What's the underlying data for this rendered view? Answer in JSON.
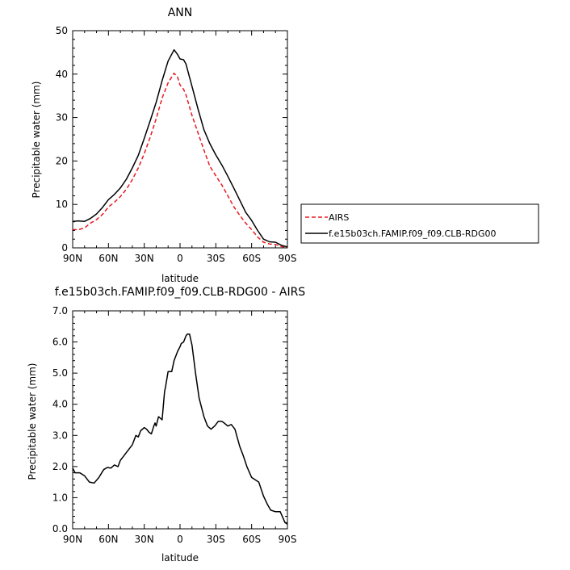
{
  "chart_data": [
    {
      "type": "line",
      "title": "ANN",
      "xlabel": "latitude",
      "ylabel": "Precipitable water (mm)",
      "xlim": [
        90,
        -90
      ],
      "ylim": [
        0,
        50
      ],
      "xticks": [
        90,
        60,
        30,
        0,
        -30,
        -60,
        -90
      ],
      "xtick_labels": [
        "90N",
        "60N",
        "30N",
        "0",
        "30S",
        "60S",
        "90S"
      ],
      "yticks": [
        0,
        10,
        20,
        30,
        40,
        50
      ],
      "ytick_labels": [
        "0",
        "10",
        "20",
        "30",
        "40",
        "50"
      ],
      "legend": [
        "AIRS",
        "f.e15b03ch.FAMIP.f09_f09.CLB-RDG00"
      ],
      "series": [
        {
          "name": "AIRS",
          "color": "#e8191f",
          "dash": true,
          "x": [
            90,
            85,
            80,
            75,
            70,
            65,
            60,
            55,
            50,
            45,
            40,
            35,
            30,
            25,
            20,
            15,
            10,
            5,
            2,
            0,
            -3,
            -5,
            -10,
            -15,
            -20,
            -25,
            -30,
            -35,
            -40,
            -45,
            -50,
            -55,
            -60,
            -65,
            -70,
            -75,
            -80,
            -85,
            -90
          ],
          "values": [
            4.2,
            4.2,
            4.6,
            5.7,
            6.5,
            7.7,
            9.4,
            10.5,
            11.8,
            13.5,
            15.7,
            18.4,
            21.7,
            25.5,
            29.7,
            34.5,
            38.0,
            40.2,
            39.3,
            37.5,
            36.5,
            35.2,
            30.5,
            26.5,
            22.5,
            18.8,
            16.6,
            14.5,
            12.0,
            9.5,
            7.5,
            5.7,
            4.2,
            2.5,
            1.3,
            0.9,
            0.8,
            0.3,
            0.1
          ]
        },
        {
          "name": "f.e15b03ch.FAMIP.f09_f09.CLB-RDG00",
          "color": "#000000",
          "dash": false,
          "x": [
            90,
            85,
            80,
            75,
            70,
            65,
            60,
            55,
            50,
            45,
            40,
            35,
            30,
            25,
            20,
            15,
            10,
            5,
            2,
            0,
            -3,
            -5,
            -10,
            -15,
            -20,
            -25,
            -30,
            -35,
            -40,
            -45,
            -50,
            -55,
            -60,
            -65,
            -70,
            -75,
            -80,
            -85,
            -90
          ],
          "values": [
            6.1,
            6.2,
            6.1,
            6.8,
            7.8,
            9.3,
            11.1,
            12.3,
            13.8,
            15.8,
            18.4,
            21.3,
            25.2,
            29.3,
            33.5,
            38.5,
            43.0,
            45.6,
            44.5,
            43.5,
            43.3,
            42.3,
            37.2,
            32.0,
            27.2,
            24.0,
            21.4,
            19.1,
            16.5,
            13.8,
            11.0,
            8.2,
            6.3,
            4.0,
            2.0,
            1.4,
            1.3,
            0.6,
            0.2
          ]
        }
      ]
    },
    {
      "type": "line",
      "title": "f.e15b03ch.FAMIP.f09_f09.CLB-RDG00 - AIRS",
      "xlabel": "latitude",
      "ylabel": "Precipitable water (mm)",
      "xlim": [
        90,
        -90
      ],
      "ylim": [
        0,
        7
      ],
      "xticks": [
        90,
        60,
        30,
        0,
        -30,
        -60,
        -90
      ],
      "xtick_labels": [
        "90N",
        "60N",
        "30N",
        "0",
        "30S",
        "60S",
        "90S"
      ],
      "yticks": [
        0,
        1,
        2,
        3,
        4,
        5,
        6,
        7
      ],
      "ytick_labels": [
        "0.0",
        "1.0",
        "2.0",
        "3.0",
        "4.0",
        "5.0",
        "6.0",
        "7.0"
      ],
      "series": [
        {
          "name": "f.e15b03ch.FAMIP.f09_f09.CLB-RDG00 - AIRS",
          "color": "#000000",
          "dash": false,
          "x": [
            90,
            88,
            84,
            80,
            76,
            72,
            68,
            64,
            61,
            58,
            55,
            52,
            50,
            48,
            44,
            40,
            37,
            35,
            33,
            30,
            28,
            26,
            24,
            22,
            21,
            20,
            18,
            15,
            13,
            12,
            10,
            7,
            5,
            2,
            0,
            -1,
            -3,
            -5,
            -6,
            -8,
            -10,
            -13,
            -16,
            -20,
            -23,
            -26,
            -29,
            -32,
            -35,
            -37,
            -40,
            -43,
            -46,
            -50,
            -53,
            -56,
            -60,
            -62,
            -64,
            -66,
            -70,
            -73,
            -76,
            -80,
            -84,
            -88,
            -90
          ],
          "values": [
            1.95,
            1.8,
            1.8,
            1.7,
            1.5,
            1.47,
            1.65,
            1.9,
            1.97,
            1.95,
            2.05,
            2.0,
            2.2,
            2.3,
            2.5,
            2.7,
            3.0,
            2.95,
            3.15,
            3.25,
            3.2,
            3.1,
            3.05,
            3.3,
            3.4,
            3.3,
            3.6,
            3.5,
            4.4,
            4.6,
            5.05,
            5.05,
            5.4,
            5.7,
            5.85,
            5.95,
            6.0,
            6.2,
            6.25,
            6.25,
            5.9,
            5.0,
            4.2,
            3.6,
            3.3,
            3.2,
            3.3,
            3.45,
            3.45,
            3.4,
            3.3,
            3.35,
            3.2,
            2.65,
            2.35,
            2.0,
            1.65,
            1.6,
            1.55,
            1.5,
            1.05,
            0.8,
            0.6,
            0.55,
            0.55,
            0.2,
            0.15
          ]
        }
      ]
    }
  ]
}
